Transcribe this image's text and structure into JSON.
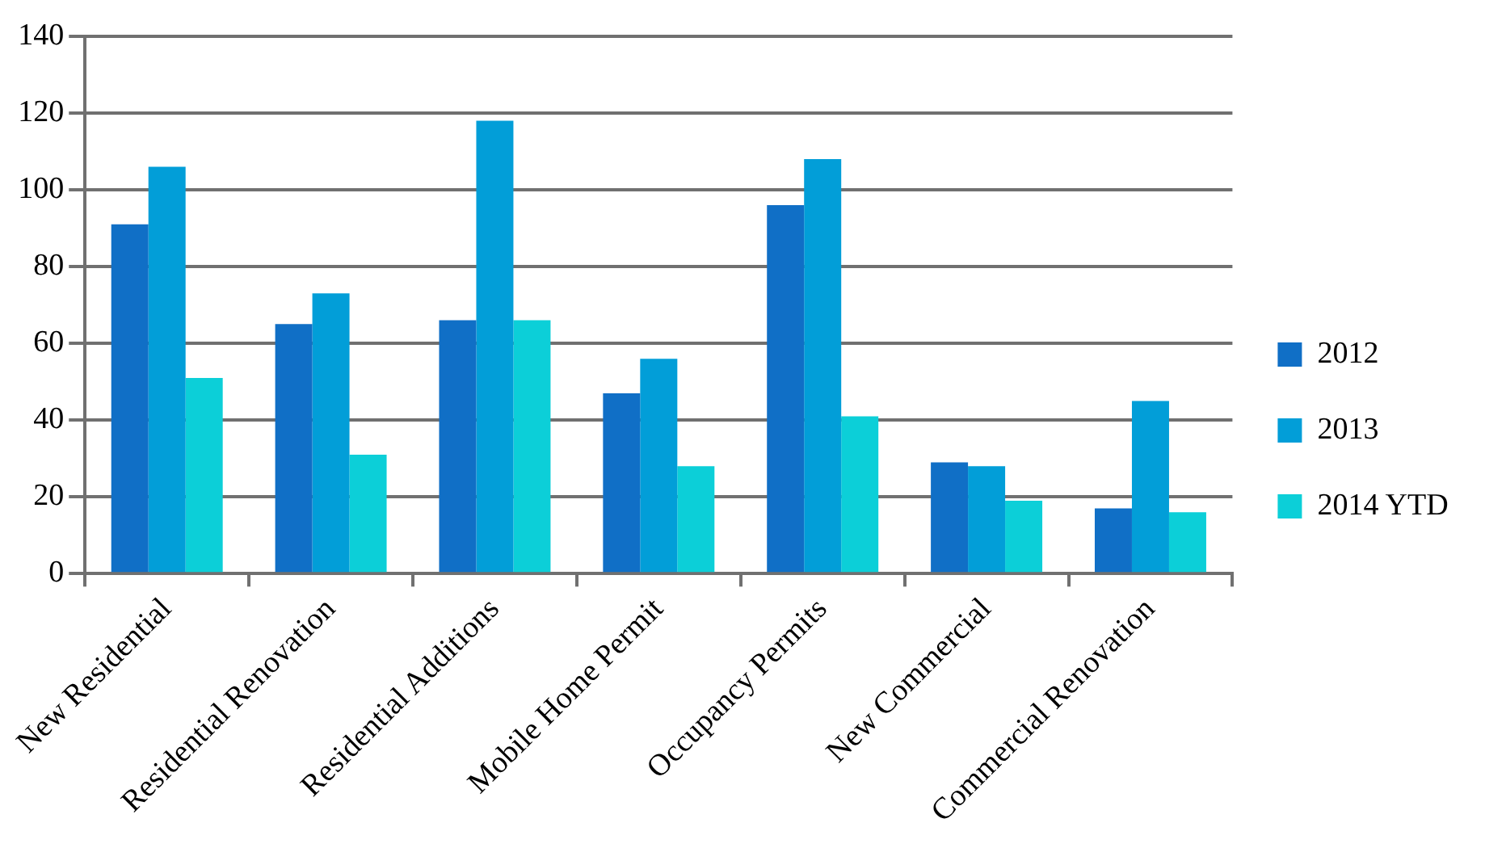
{
  "chart_data": {
    "type": "bar",
    "categories": [
      "New Residential",
      "Residential Renovation",
      "Residential Additions",
      "Mobile Home Permit",
      "Occupancy Permits",
      "New Commercial",
      "Commercial Renovation"
    ],
    "series": [
      {
        "name": "2012",
        "color": "#106fc6",
        "values": [
          91,
          65,
          66,
          47,
          96,
          29,
          17
        ]
      },
      {
        "name": "2013",
        "color": "#029ed8",
        "values": [
          106,
          73,
          118,
          56,
          108,
          28,
          45
        ]
      },
      {
        "name": "2014 YTD",
        "color": "#0ccfd8",
        "values": [
          51,
          31,
          66,
          28,
          41,
          19,
          16
        ]
      }
    ],
    "ylim": [
      0,
      140
    ],
    "yticks": [
      0,
      20,
      40,
      60,
      80,
      100,
      120,
      140
    ],
    "grid": "y",
    "legend": "right"
  }
}
